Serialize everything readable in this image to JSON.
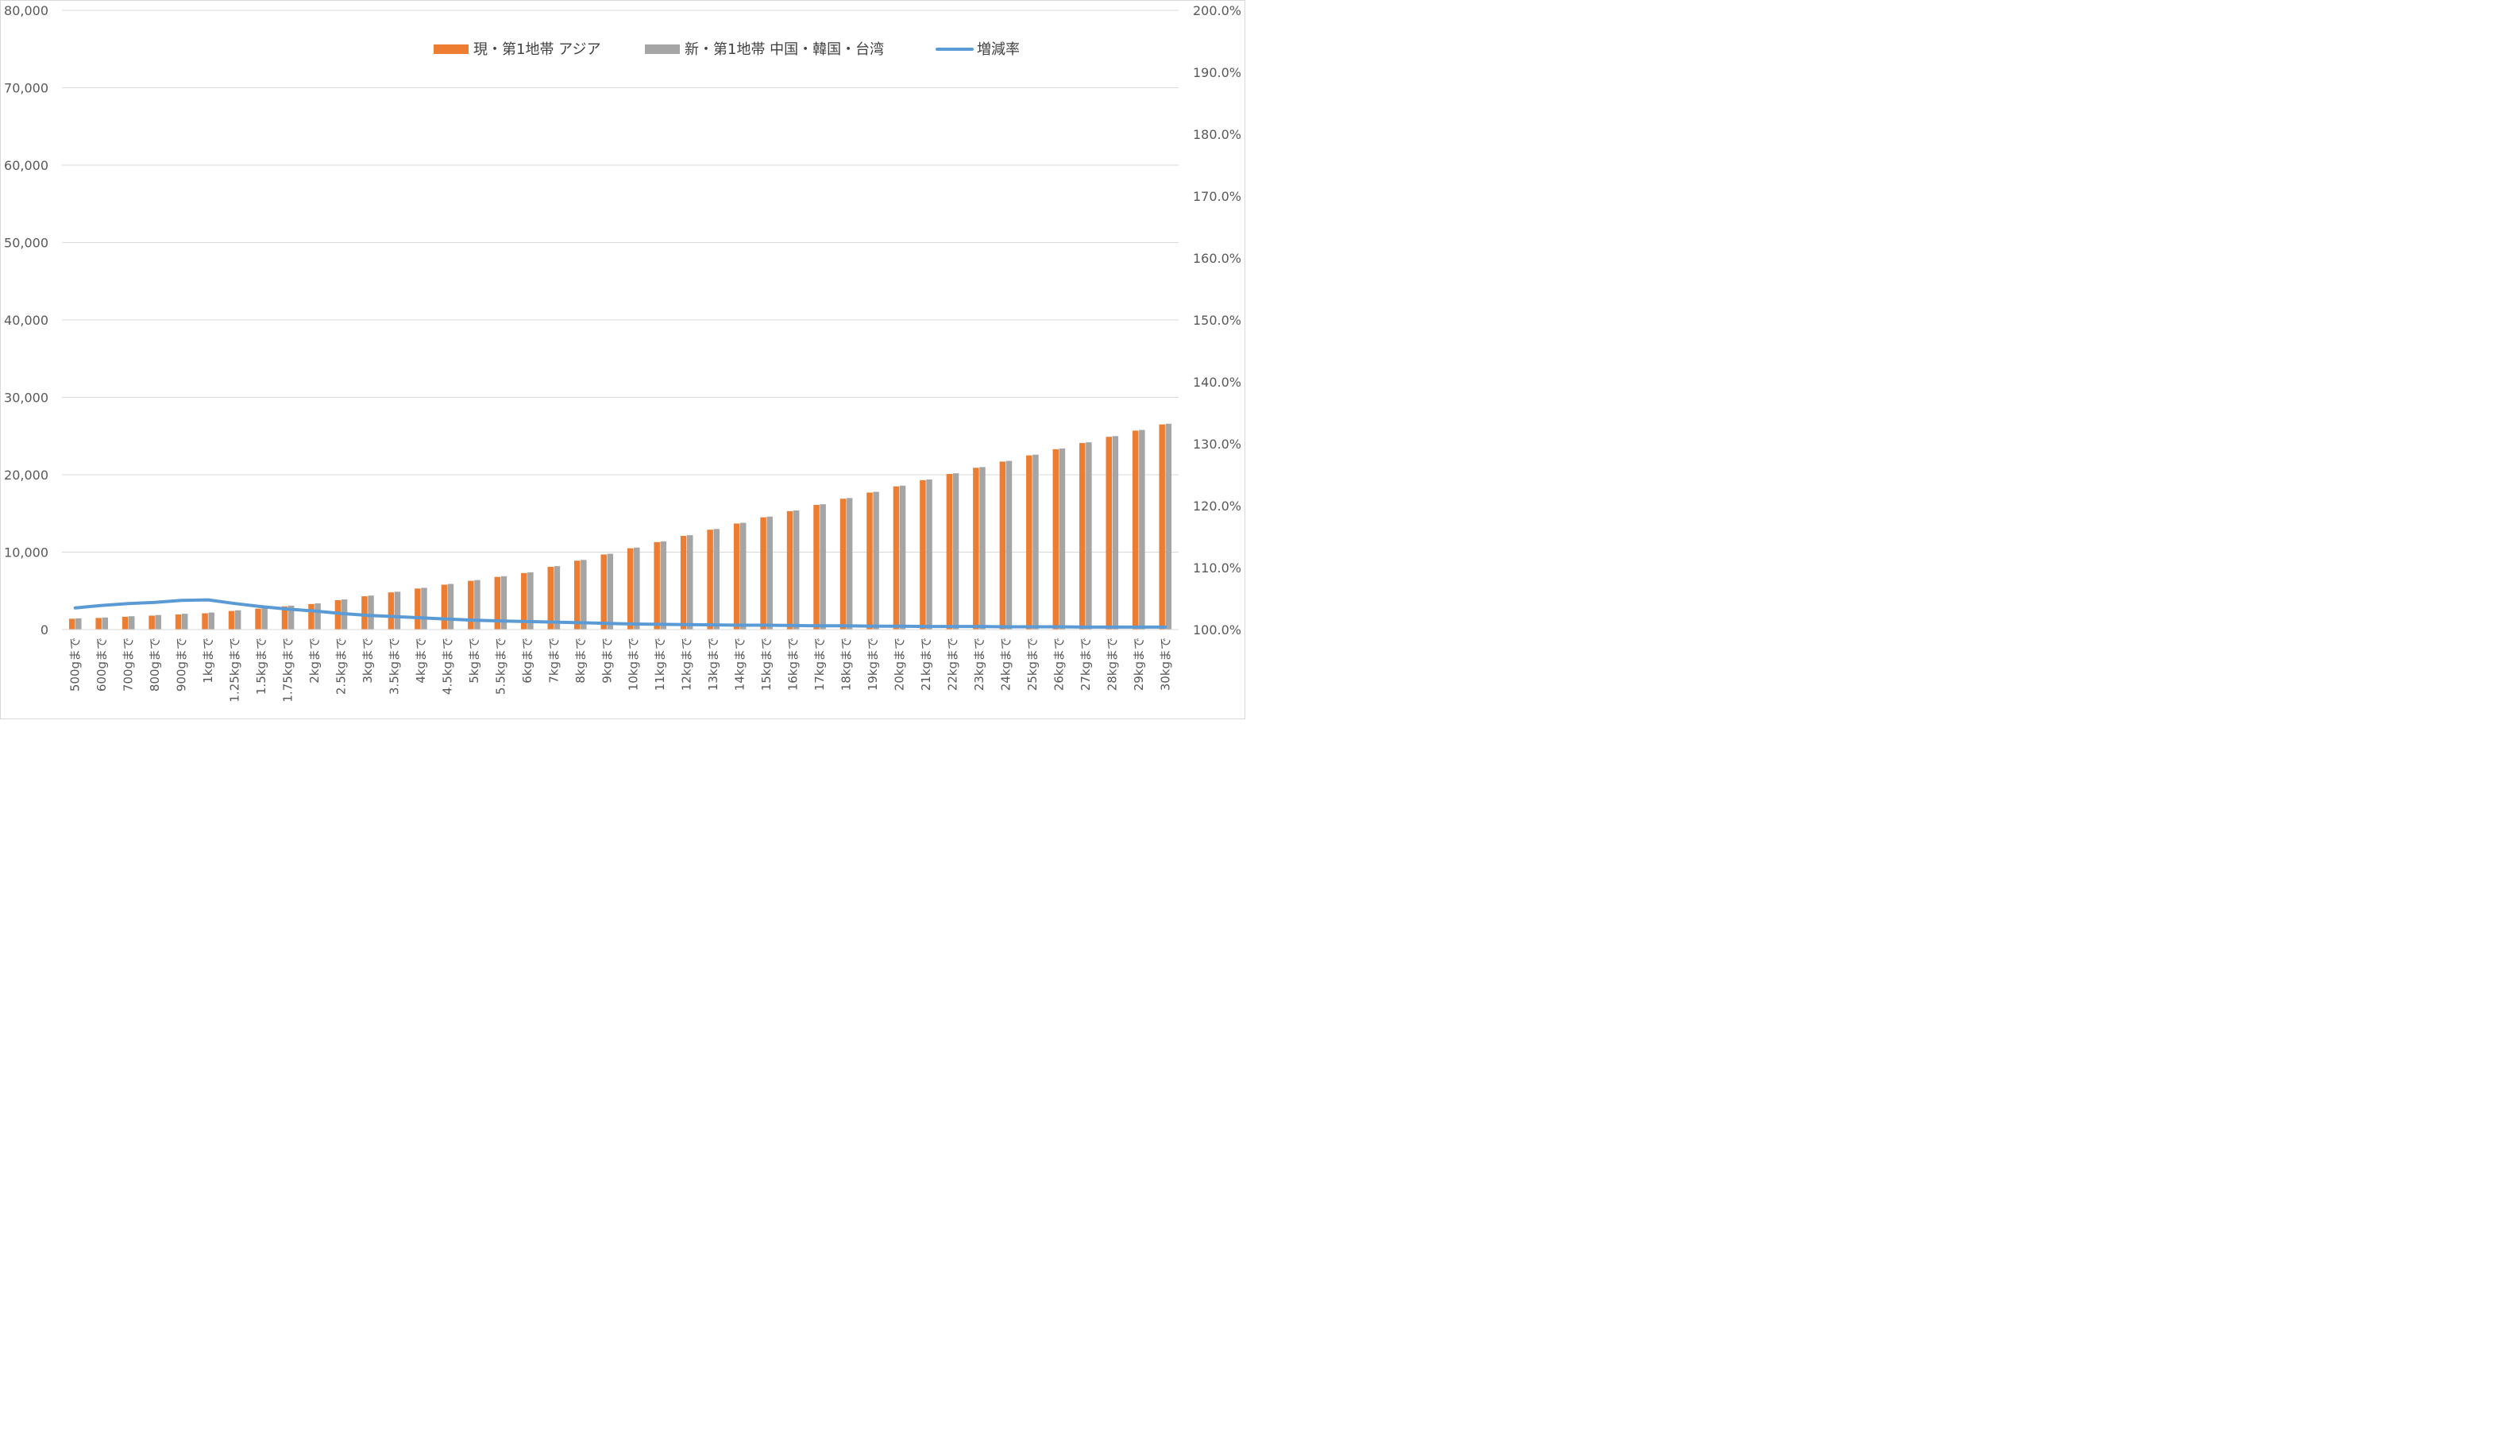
{
  "chart_data": {
    "type": "bar",
    "categories": [
      "500gまで",
      "600gまで",
      "700gまで",
      "800gまで",
      "900gまで",
      "1kgまで",
      "1.25kgまで",
      "1.5kgまで",
      "1.75kgまで",
      "2kgまで",
      "2.5kgまで",
      "3kgまで",
      "3.5kgまで",
      "4kgまで",
      "4.5kgまで",
      "5kgまで",
      "5.5kgまで",
      "6kgまで",
      "7kgまで",
      "8kgまで",
      "9kgまで",
      "10kgまで",
      "11kgまで",
      "12kgまで",
      "13kgまで",
      "14kgまで",
      "15kgまで",
      "16kgまで",
      "17kgまで",
      "18kgまで",
      "19kgまで",
      "20kgまで",
      "21kgまで",
      "22kgまで",
      "23kgまで",
      "24kgまで",
      "25kgまで",
      "26kgまで",
      "27kgまで",
      "28kgまで",
      "29kgまで",
      "30kgまで"
    ],
    "series": [
      {
        "name": "現・第1地帯 アジア",
        "color": "#ED7D31",
        "axis": "left",
        "values": [
          1400,
          1500,
          1650,
          1800,
          1950,
          2100,
          2400,
          2700,
          3000,
          3300,
          3800,
          4300,
          4800,
          5300,
          5800,
          6300,
          6800,
          7300,
          8100,
          8900,
          9700,
          10500,
          11300,
          12100,
          12900,
          13700,
          14500,
          15300,
          16100,
          16900,
          17700,
          18500,
          19300,
          20100,
          20900,
          21700,
          22500,
          23300,
          24100,
          24900,
          25700,
          26500
        ]
      },
      {
        "name": "新・第1地帯 中国・韓国・台湾",
        "color": "#A5A5A5",
        "axis": "left",
        "values": [
          1450,
          1560,
          1720,
          1880,
          2040,
          2200,
          2490,
          2790,
          3090,
          3380,
          3890,
          4390,
          4890,
          5390,
          5890,
          6390,
          6890,
          7390,
          8190,
          8990,
          9790,
          10590,
          11390,
          12190,
          12990,
          13790,
          14590,
          15390,
          16190,
          16990,
          17790,
          18590,
          19390,
          20190,
          20990,
          21790,
          22590,
          23390,
          24190,
          24990,
          25790,
          26590
        ]
      },
      {
        "name": "増減率",
        "type": "line",
        "color": "#5B9BD5",
        "axis": "right",
        "values": [
          103.5,
          103.9,
          104.2,
          104.4,
          104.7,
          104.8,
          104.2,
          103.7,
          103.3,
          103.0,
          102.6,
          102.3,
          102.1,
          101.9,
          101.7,
          101.5,
          101.4,
          101.3,
          101.2,
          101.1,
          101.0,
          100.9,
          100.85,
          100.8,
          100.75,
          100.7,
          100.7,
          100.65,
          100.6,
          100.6,
          100.55,
          100.55,
          100.5,
          100.5,
          100.5,
          100.45,
          100.45,
          100.45,
          100.4,
          100.4,
          100.4,
          100.4
        ]
      }
    ],
    "y_left": {
      "ylim": [
        0,
        80000
      ],
      "ticks": [
        "0",
        "10,000",
        "20,000",
        "30,000",
        "40,000",
        "50,000",
        "60,000",
        "70,000",
        "80,000"
      ]
    },
    "y_right": {
      "ylim": [
        100,
        200
      ],
      "ticks": [
        "100.0%",
        "110.0%",
        "120.0%",
        "130.0%",
        "140.0%",
        "150.0%",
        "160.0%",
        "170.0%",
        "180.0%",
        "190.0%",
        "200.0%"
      ]
    },
    "grid": true,
    "legend_position": "top-center",
    "title": "",
    "xlabel": "",
    "ylabel": ""
  }
}
